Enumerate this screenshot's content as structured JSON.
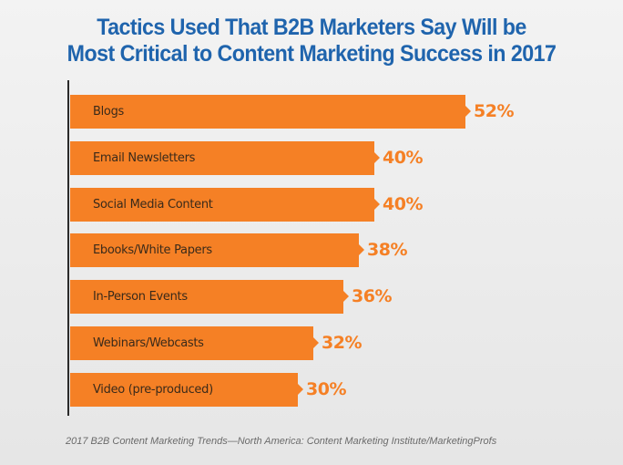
{
  "title": {
    "line1": "Tactics Used That B2B Marketers Say Will be",
    "line2": "Most Critical to Content Marketing Success in 2017"
  },
  "source": "2017 B2B Content Marketing Trends—North America: Content Marketing Institute/MarketingProfs",
  "colors": {
    "bar": "#f58025",
    "title": "#1f64ad",
    "value": "#f58025"
  },
  "bars": [
    {
      "label": "Blogs",
      "value": "52%"
    },
    {
      "label": "Email Newsletters",
      "value": "40%"
    },
    {
      "label": "Social Media Content",
      "value": "40%"
    },
    {
      "label": "Ebooks/White Papers",
      "value": "38%"
    },
    {
      "label": "In-Person Events",
      "value": "36%"
    },
    {
      "label": "Webinars/Webcasts",
      "value": "32%"
    },
    {
      "label": "Video (pre-produced)",
      "value": "30%"
    }
  ],
  "chart_data": {
    "type": "bar",
    "orientation": "horizontal",
    "title": "Tactics Used That B2B Marketers Say Will be Most Critical to Content Marketing Success in 2017",
    "categories": [
      "Blogs",
      "Email Newsletters",
      "Social Media Content",
      "Ebooks/White Papers",
      "In-Person Events",
      "Webinars/Webcasts",
      "Video (pre-produced)"
    ],
    "values": [
      52,
      40,
      40,
      38,
      36,
      32,
      30
    ],
    "unit": "%",
    "xlabel": "",
    "ylabel": "",
    "grid": false,
    "legend": null,
    "source": "2017 B2B Content Marketing Trends—North America: Content Marketing Institute/MarketingProfs"
  }
}
